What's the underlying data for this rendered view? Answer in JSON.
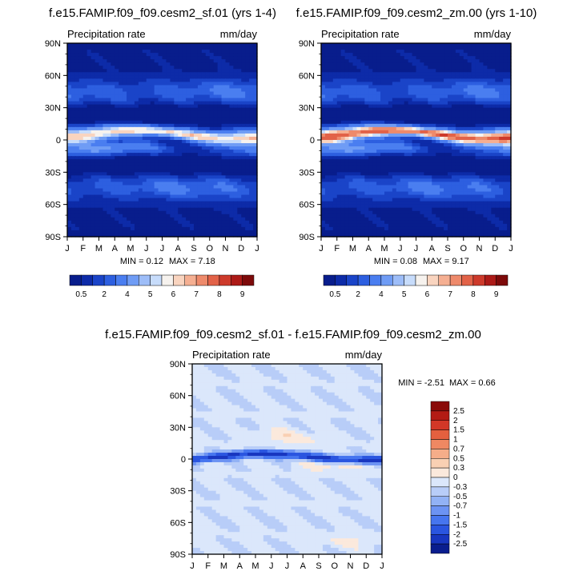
{
  "chart_data": [
    {
      "type": "heatmap",
      "title": "f.e15.FAMIP.f09_f09.cesm2_sf.01 (yrs 1-4)",
      "left_label": "Precipitation rate",
      "right_label": "mm/day",
      "x_ticks": [
        "J",
        "F",
        "M",
        "A",
        "M",
        "J",
        "J",
        "A",
        "S",
        "O",
        "N",
        "D",
        "J"
      ],
      "y_ticks": [
        "90N",
        "60N",
        "30N",
        "0",
        "30S",
        "60S",
        "90S"
      ],
      "y_range": [
        -90,
        90
      ],
      "min_text": "MIN =  0.12",
      "max_text": "MAX =  7.18",
      "itcz_peak": 7.18,
      "colorbar_labels": [
        "0.5",
        "2",
        "4",
        "5",
        "6",
        "7",
        "8",
        "9"
      ]
    },
    {
      "type": "heatmap",
      "title": "f.e15.FAMIP.f09_f09.cesm2_zm.00 (yrs 1-10)",
      "left_label": "Precipitation rate",
      "right_label": "mm/day",
      "x_ticks": [
        "J",
        "F",
        "M",
        "A",
        "M",
        "J",
        "J",
        "A",
        "S",
        "O",
        "N",
        "D",
        "J"
      ],
      "y_ticks": [
        "90N",
        "60N",
        "30N",
        "0",
        "30S",
        "60S",
        "90S"
      ],
      "y_range": [
        -90,
        90
      ],
      "min_text": "MIN =  0.08",
      "max_text": "MAX =  9.17",
      "itcz_peak": 9.17,
      "colorbar_labels": [
        "0.5",
        "2",
        "4",
        "5",
        "6",
        "7",
        "8",
        "9"
      ]
    },
    {
      "type": "heatmap",
      "title": "f.e15.FAMIP.f09_f09.cesm2_sf.01 - f.e15.FAMIP.f09_f09.cesm2_zm.00",
      "left_label": "Precipitation rate",
      "right_label": "mm/day",
      "x_ticks": [
        "J",
        "F",
        "M",
        "A",
        "M",
        "J",
        "J",
        "A",
        "S",
        "O",
        "N",
        "D",
        "J"
      ],
      "y_ticks": [
        "90N",
        "60N",
        "30N",
        "0",
        "30S",
        "60S",
        "90S"
      ],
      "y_range": [
        -90,
        90
      ],
      "min_text": "MIN =  -2.51",
      "max_text": "MAX =   0.66",
      "min_value": -2.51,
      "max_value": 0.66,
      "colorbar_labels": [
        "2.5",
        "2",
        "1.5",
        "1",
        "0.7",
        "0.5",
        "0.3",
        "0",
        "-0.3",
        "-0.5",
        "-0.7",
        "-1",
        "-1.5",
        "-2",
        "-2.5"
      ]
    }
  ],
  "colors": {
    "precip_scale": [
      "#081d8c",
      "#0d2ba8",
      "#1a44c8",
      "#2d5fe0",
      "#4a7ef0",
      "#6f9cf5",
      "#9dbdf8",
      "#c7dcfb",
      "#f6f2ee",
      "#f9d4bf",
      "#f5af92",
      "#ee8a6b",
      "#e26248",
      "#cd3a2b",
      "#ac1a17",
      "#7d0a0a"
    ],
    "diff_scale": [
      "#0a1d8e",
      "#1836c0",
      "#2a55e0",
      "#4675ef",
      "#6c93f3",
      "#92b2f5",
      "#b8cdf8",
      "#dbe7fb",
      "#fbe9dc",
      "#f9d0b3",
      "#f5ad89",
      "#ef8862",
      "#e4603f",
      "#d23727",
      "#b31b14",
      "#8a0a08"
    ],
    "background": "#ffffff",
    "ink": "#000000"
  }
}
